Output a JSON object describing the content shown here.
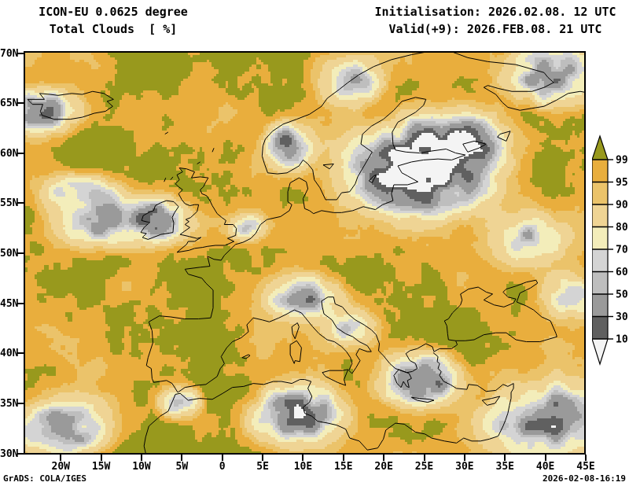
{
  "header": {
    "model": "ICON-EU 0.0625 degree",
    "variable": "Total Clouds  [ %]",
    "initialisation": "Initialisation: 2026.02.08. 12 UTC",
    "valid": "Valid(+9): 2026.FEB.08. 21 UTC"
  },
  "axes": {
    "lat_ticks": [
      "70N",
      "65N",
      "60N",
      "55N",
      "50N",
      "45N",
      "40N",
      "35N",
      "30N"
    ],
    "lon_ticks": [
      "20W",
      "15W",
      "10W",
      "5W",
      "0",
      "5E",
      "10E",
      "15E",
      "20E",
      "25E",
      "30E",
      "35E",
      "40E",
      "45E"
    ]
  },
  "colorbar": {
    "tick_labels": [
      "99.5",
      "95",
      "90",
      "80",
      "70",
      "60",
      "50",
      "30",
      "10"
    ],
    "colors_top_to_bottom": [
      "#98991D",
      "#E9AE3D",
      "#EBC36A",
      "#EFD494",
      "#F3EDBA",
      "#D4D4D4",
      "#BEBEBE",
      "#9A9A9A",
      "#606060",
      "#F4F4F4"
    ]
  },
  "footer": {
    "left": "GrADS: COLA/IGES",
    "right": "2026-02-08-16:19"
  },
  "chart_data": {
    "type": "heatmap",
    "title": "Total Clouds [%]",
    "model": "ICON-EU 0.0625 degree",
    "initialisation": "2026.02.08. 12 UTC",
    "valid": "Valid(+9): 2026.FEB.08. 21 UTC",
    "lon_range": [
      "20W",
      "45E"
    ],
    "lat_range": [
      "30N",
      "70N"
    ],
    "legend_levels": [
      10,
      30,
      50,
      60,
      70,
      80,
      90,
      95,
      99.5
    ],
    "legend_position": "right",
    "grid": false
  }
}
